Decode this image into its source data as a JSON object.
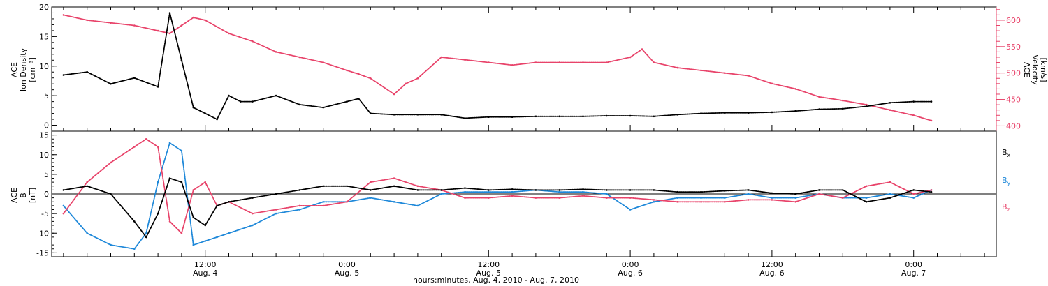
{
  "chart_data": [
    {
      "type": "scatter",
      "panel": "top",
      "ylabel_left_lines": [
        "ACE",
        "Ion Density",
        "[cm⁻³]"
      ],
      "ylabel_right_lines": [
        "ACE",
        "Velocity",
        "[km/s]"
      ],
      "y_left_range": [
        -1,
        20
      ],
      "y_left_ticks": [
        0,
        5,
        10,
        15,
        20
      ],
      "y_right_range": [
        390,
        625
      ],
      "y_right_ticks": [
        400,
        450,
        500,
        550,
        600
      ],
      "series": [
        {
          "axis": "left",
          "color": "#000000",
          "x_hours": [
            0,
            2,
            4,
            6,
            8,
            9,
            10,
            11,
            12,
            13,
            14,
            15,
            16,
            18,
            20,
            22,
            24,
            25,
            26,
            28,
            30,
            32,
            34,
            36,
            38,
            40,
            42,
            44,
            46,
            48,
            50,
            52,
            54,
            56,
            58,
            60,
            62,
            64,
            66,
            68,
            70,
            72,
            73.5
          ],
          "values": [
            8.5,
            9,
            7,
            8,
            6.5,
            19,
            11,
            3,
            2,
            1,
            5,
            4,
            4,
            5,
            3.5,
            3,
            4,
            4.5,
            2,
            1.8,
            1.8,
            1.8,
            1.2,
            1.4,
            1.4,
            1.5,
            1.5,
            1.5,
            1.6,
            1.6,
            1.5,
            1.8,
            2,
            2.1,
            2.1,
            2.2,
            2.4,
            2.7,
            2.8,
            3.2,
            3.8,
            4,
            4
          ]
        },
        {
          "axis": "right",
          "color": "#e8436a",
          "x_hours": [
            0,
            2,
            4,
            6,
            8,
            9,
            10,
            11,
            12,
            14,
            16,
            18,
            20,
            22,
            24,
            25,
            26,
            28,
            29,
            30,
            32,
            34,
            36,
            38,
            40,
            42,
            44,
            46,
            48,
            49,
            50,
            52,
            54,
            56,
            58,
            60,
            62,
            64,
            66,
            68,
            70,
            72,
            73.5
          ],
          "values": [
            610,
            600,
            595,
            590,
            580,
            575,
            590,
            605,
            600,
            575,
            560,
            540,
            530,
            520,
            505,
            498,
            490,
            460,
            480,
            490,
            530,
            525,
            520,
            515,
            520,
            520,
            520,
            520,
            530,
            545,
            520,
            510,
            505,
            500,
            495,
            480,
            470,
            455,
            448,
            440,
            430,
            420,
            410
          ]
        }
      ]
    },
    {
      "type": "scatter",
      "panel": "bottom",
      "ylabel_lines": [
        "ACE",
        "B",
        "[nT]"
      ],
      "y_range": [
        -16,
        16
      ],
      "y_ticks": [
        -15,
        -10,
        -5,
        0,
        5,
        10,
        15
      ],
      "zero_line": true,
      "legend_position": "right",
      "series": [
        {
          "name": "Bx",
          "label_main": "B",
          "label_sub": "x",
          "color": "#000000",
          "x_hours": [
            0,
            2,
            4,
            6,
            7,
            8,
            9,
            10,
            11,
            12,
            13,
            14,
            16,
            18,
            20,
            22,
            24,
            26,
            28,
            30,
            32,
            34,
            36,
            38,
            40,
            42,
            44,
            46,
            48,
            50,
            52,
            54,
            56,
            58,
            60,
            62,
            64,
            66,
            68,
            70,
            72,
            73.5
          ],
          "values": [
            1,
            2,
            0,
            -7,
            -11,
            -5,
            4,
            3,
            -6,
            -8,
            -3,
            -2,
            -1,
            0,
            1,
            2,
            2,
            1,
            2,
            1,
            1,
            1.5,
            1,
            1.2,
            1,
            1,
            1.2,
            1,
            1,
            1,
            0.5,
            0.5,
            0.8,
            1,
            0.2,
            0,
            1,
            1,
            -2,
            -1,
            1,
            0.5
          ]
        },
        {
          "name": "By",
          "label_main": "B",
          "label_sub": "y",
          "color": "#1e88d9",
          "x_hours": [
            0,
            2,
            4,
            6,
            7,
            8,
            9,
            10,
            11,
            12,
            13,
            14,
            16,
            18,
            20,
            22,
            24,
            26,
            28,
            30,
            32,
            34,
            36,
            38,
            40,
            42,
            44,
            46,
            48,
            50,
            52,
            54,
            56,
            58,
            60,
            62,
            64,
            66,
            68,
            70,
            72,
            73.5
          ],
          "values": [
            -3,
            -10,
            -13,
            -14,
            -10,
            3,
            13,
            11,
            -13,
            -12,
            -11,
            -10,
            -8,
            -5,
            -4,
            -2,
            -2,
            -1,
            -2,
            -3,
            0,
            0.5,
            0.5,
            0.5,
            1,
            0.5,
            0.5,
            0,
            -4,
            -2,
            -1,
            -1,
            -1,
            0,
            -1,
            -1,
            0,
            -1,
            -1,
            0,
            -1,
            1
          ]
        },
        {
          "name": "Bz",
          "label_main": "B",
          "label_sub": "z",
          "color": "#e8436a",
          "x_hours": [
            0,
            2,
            4,
            6,
            7,
            8,
            9,
            10,
            11,
            12,
            13,
            14,
            16,
            18,
            20,
            22,
            24,
            26,
            28,
            30,
            32,
            34,
            36,
            38,
            40,
            42,
            44,
            46,
            48,
            50,
            52,
            54,
            56,
            58,
            60,
            62,
            64,
            66,
            68,
            70,
            72,
            73.5
          ],
          "values": [
            -5,
            3,
            8,
            12,
            14,
            12,
            -7,
            -10,
            1,
            3,
            -3,
            -2,
            -5,
            -4,
            -3,
            -3,
            -2,
            3,
            4,
            2,
            1,
            -1,
            -1,
            -0.5,
            -1,
            -1,
            -0.5,
            -1,
            -1,
            -1.5,
            -2,
            -2,
            -2,
            -1.5,
            -1.5,
            -2,
            0,
            -1,
            2,
            3,
            0,
            1
          ]
        }
      ]
    }
  ],
  "x_axis": {
    "range_hours": [
      -1,
      79
    ],
    "major_ticks": [
      {
        "hour": 12,
        "time": "12:00",
        "date": "Aug. 4"
      },
      {
        "hour": 24,
        "time": "0:00",
        "date": "Aug. 5"
      },
      {
        "hour": 36,
        "time": "12:00",
        "date": "Aug. 5"
      },
      {
        "hour": 48,
        "time": "0:00",
        "date": "Aug. 6"
      },
      {
        "hour": 60,
        "time": "12:00",
        "date": "Aug. 6"
      },
      {
        "hour": 72,
        "time": "0:00",
        "date": "Aug. 7"
      }
    ],
    "minor_tick_every_hours": 2,
    "title": "hours:minutes, Aug.  4, 2010 - Aug.  7, 2010"
  }
}
